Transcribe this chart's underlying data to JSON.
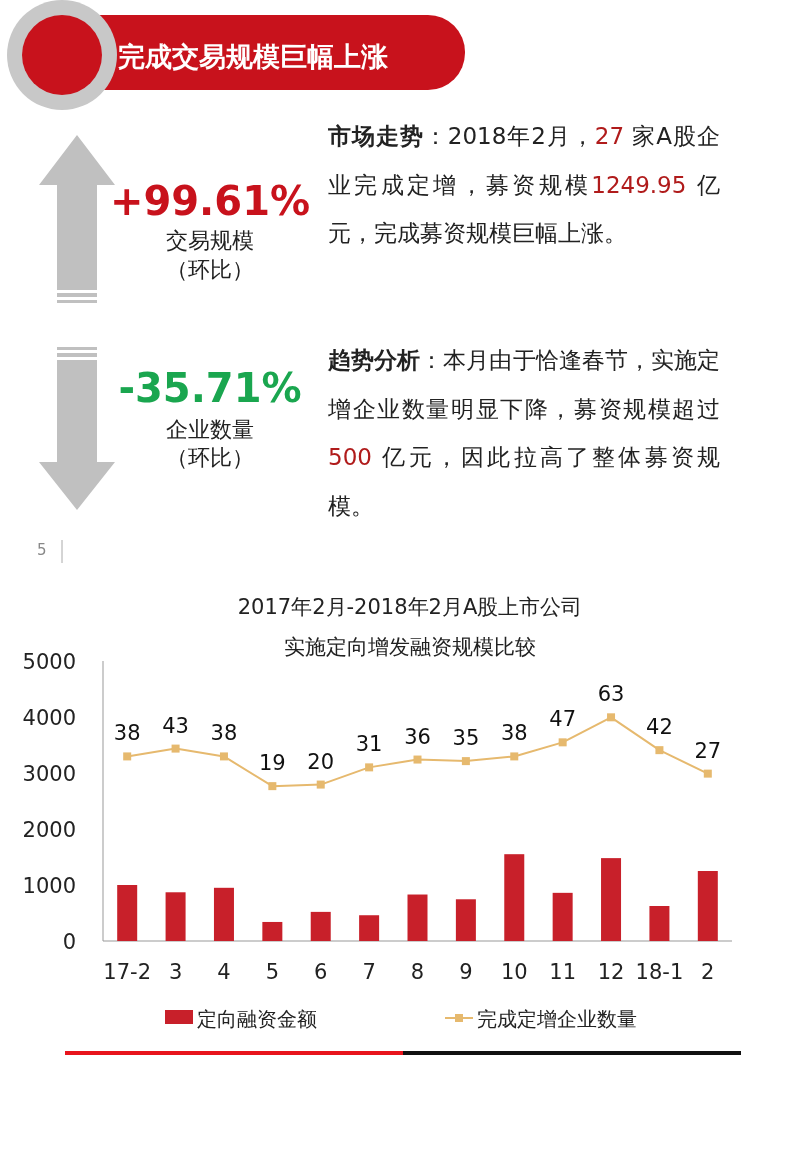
{
  "chart_data": [
    {
      "type": "other",
      "title": "完成交易规模巨幅上涨",
      "annotations": [
        "+99.61%",
        "交易规模",
        "（环比）",
        "-35.71%",
        "企业数量",
        "（环比）",
        "市场走势",
        "：2018年2月，",
        "27",
        " 家A股企业完成定增，募资规模",
        "1249.95",
        " 亿元，完成募资规模巨幅上涨。",
        "趋势分析",
        "：本月由于恰逢春节，实施定增企业数量明显下降，募资规模超过 ",
        "500",
        " 亿元，因此拉高了整体募资规模。",
        "5"
      ]
    },
    {
      "type": "bar",
      "title": "2017年2月-2018年2月A股上市公司",
      "subtitle": "实施定向增发融资规模比较",
      "categories": [
        "17-2",
        "3",
        "4",
        "5",
        "6",
        "7",
        "8",
        "9",
        "10",
        "11",
        "12",
        "18-1",
        "2"
      ],
      "series": [
        {
          "name": "定向融资金额",
          "color": "#c8202a",
          "values": [
            1000,
            870,
            950,
            340,
            520,
            460,
            830,
            745,
            1550,
            860,
            1480,
            625,
            1250
          ]
        },
        {
          "name": "完成定增企业数量",
          "type": "line",
          "axis": "y2",
          "color": "#e6b96e",
          "values": [
            38,
            43,
            38,
            19,
            20,
            31,
            36,
            35,
            38,
            47,
            63,
            42,
            27
          ],
          "value_labels": [
            "38",
            "43",
            "38",
            "19",
            "20",
            "31",
            "36",
            "35",
            "38",
            "47",
            "63",
            "42",
            "27"
          ]
        }
      ],
      "ylim": [
        0,
        5000
      ],
      "yticks": [
        0,
        1000,
        2000,
        3000,
        4000,
        5000
      ],
      "y2lim": [
        -80,
        99
      ],
      "tick_labels": "xy",
      "grid": false,
      "legend": "bottom",
      "marker": "square"
    }
  ]
}
